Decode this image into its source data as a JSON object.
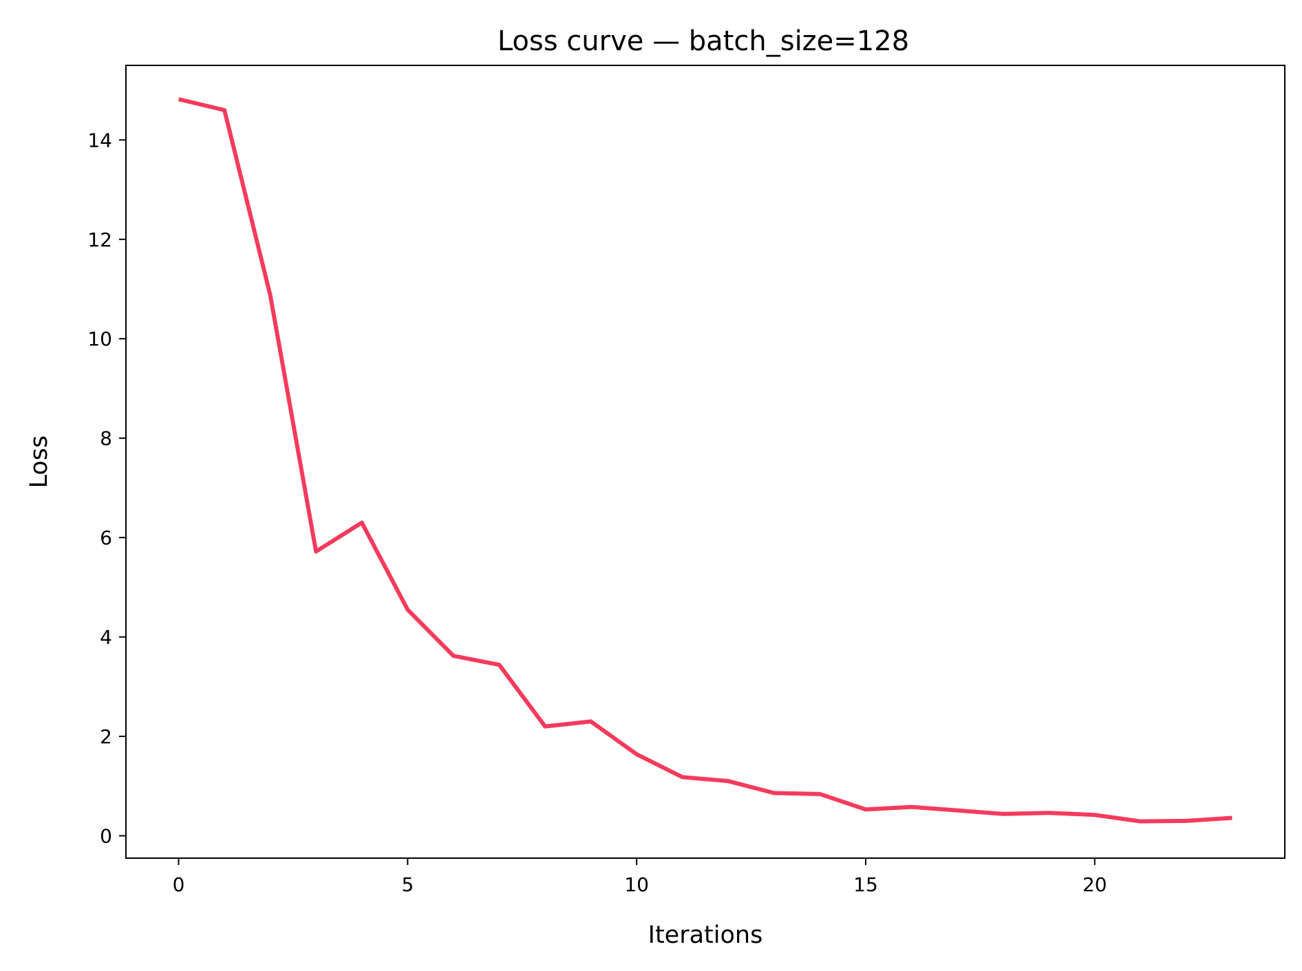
{
  "chart_data": {
    "type": "line",
    "title": "Loss curve — batch_size=128",
    "xlabel": "Iterations",
    "ylabel": "Loss",
    "xlim": [
      -1.15,
      24.15
    ],
    "ylim": [
      -0.45,
      15.5
    ],
    "x_ticks": [
      0,
      5,
      10,
      15,
      20
    ],
    "y_ticks": [
      0,
      2,
      4,
      6,
      8,
      10,
      12,
      14
    ],
    "x_tick_labels": [
      "0",
      "5",
      "10",
      "15",
      "20"
    ],
    "y_tick_labels": [
      "0",
      "2",
      "4",
      "6",
      "8",
      "10",
      "12",
      "14"
    ],
    "grid": false,
    "legend": "none",
    "series": [
      {
        "color": "#f43b5c",
        "x": [
          0,
          1,
          2,
          3,
          4,
          5,
          6,
          7,
          8,
          9,
          10,
          11,
          12,
          13,
          14,
          15,
          16,
          17,
          18,
          19,
          20,
          21,
          22,
          23
        ],
        "values": [
          14.82,
          14.6,
          10.88,
          5.72,
          6.3,
          4.55,
          3.62,
          3.44,
          2.2,
          2.3,
          1.64,
          1.18,
          1.1,
          0.86,
          0.84,
          0.53,
          0.58,
          0.51,
          0.44,
          0.46,
          0.42,
          0.29,
          0.3,
          0.36
        ]
      }
    ]
  }
}
